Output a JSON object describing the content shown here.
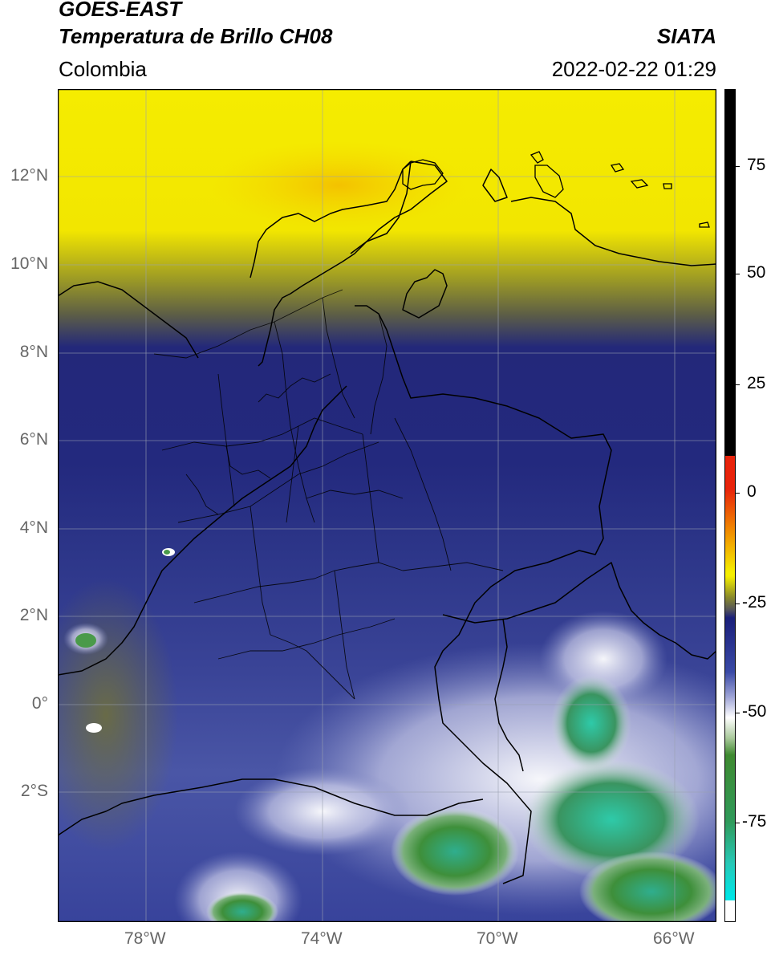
{
  "header": {
    "satellite": "GOES-EAST",
    "product": "Temperatura de Brillo CH08",
    "region": "Colombia",
    "org": "SIATA",
    "datetime": "2022-02-22 01:29"
  },
  "axes": {
    "lat_labels": [
      "12°N",
      "10°N",
      "8°N",
      "6°N",
      "4°N",
      "2°N",
      "0°",
      "2°S"
    ],
    "lon_labels": [
      "78°W",
      "74°W",
      "70°W",
      "66°W"
    ]
  },
  "colorbar": {
    "ticks": [
      "75",
      "50",
      "25",
      "0",
      "-25",
      "-50",
      "-75"
    ],
    "colors": {
      "black": "#000000",
      "red": "#e8230b",
      "orange": "#f08a00",
      "yellow": "#f5ee00",
      "olive": "#8a8a2a",
      "navy": "#1a1f7a",
      "blue": "#3a4aa6",
      "white": "#ffffff",
      "green": "#3f8a30",
      "teal": "#27c8b6",
      "cyan": "#00e5e5"
    }
  }
}
